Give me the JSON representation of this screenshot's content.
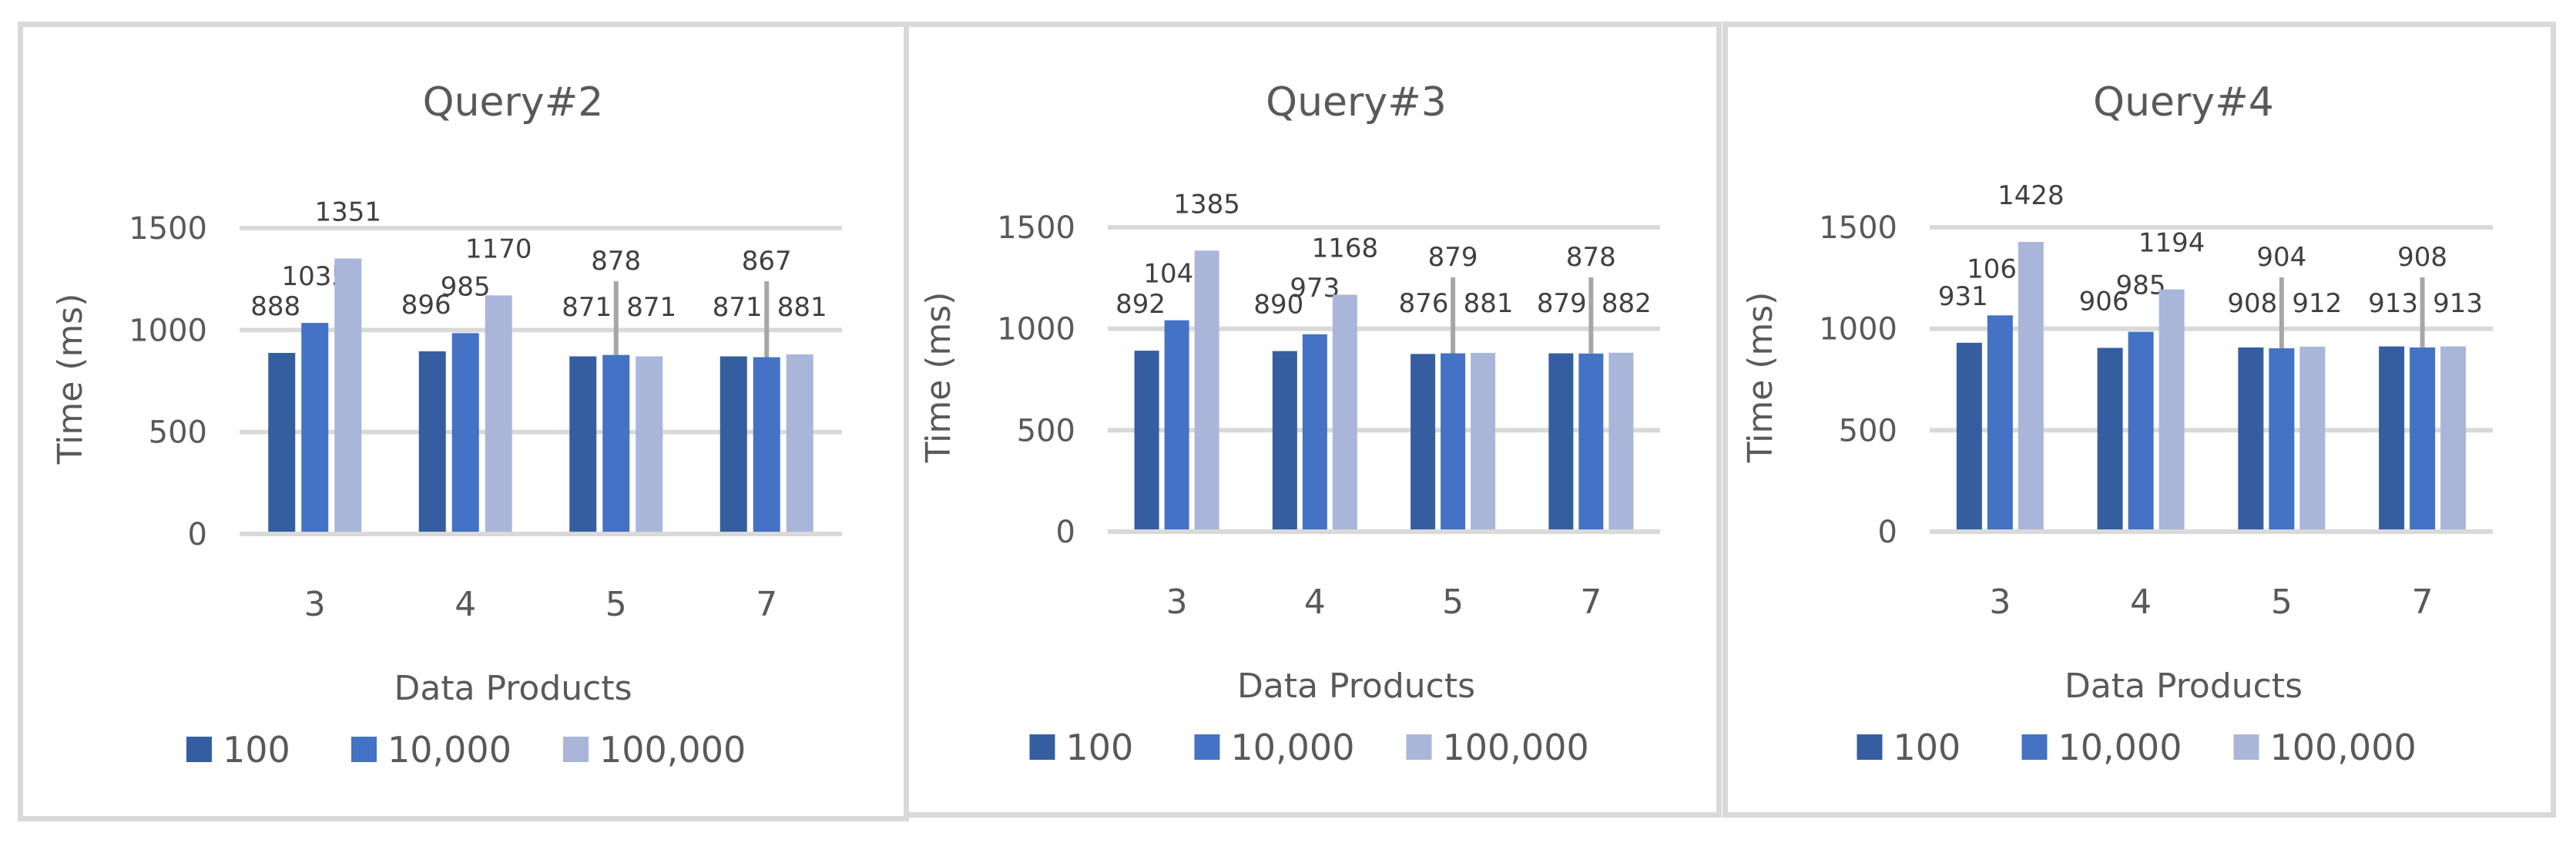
{
  "colors": {
    "series_100": "#355ea0",
    "series_10000": "#4472c4",
    "series_100000": "#a9b6da",
    "grid": "#d9d9d9",
    "leader": "#a6a6a6",
    "axis_text": "#595959",
    "label_text": "#404040",
    "border": "#d9d9d9"
  },
  "legend": [
    "100",
    "10,000",
    "100,000"
  ],
  "chart_data": [
    {
      "type": "bar",
      "title": "Query#2",
      "xlabel": "Data Products",
      "ylabel": "Time (ms)",
      "categories": [
        "3",
        "4",
        "5",
        "7"
      ],
      "yticks": [
        0,
        500,
        1000,
        1500
      ],
      "ylim": [
        0,
        1500
      ],
      "grid": true,
      "legend_position": "bottom",
      "series": [
        {
          "name": "100",
          "values": [
            888,
            896,
            871,
            871
          ]
        },
        {
          "name": "10,000",
          "values": [
            1035,
            985,
            878,
            867
          ]
        },
        {
          "name": "100,000",
          "values": [
            1351,
            1170,
            871,
            881
          ]
        }
      ]
    },
    {
      "type": "bar",
      "title": "Query#3",
      "xlabel": "Data Products",
      "ylabel": "Time (ms)",
      "categories": [
        "3",
        "4",
        "5",
        "7"
      ],
      "yticks": [
        0,
        500,
        1000,
        1500
      ],
      "ylim": [
        0,
        1500
      ],
      "grid": true,
      "legend_position": "bottom",
      "series": [
        {
          "name": "100",
          "values": [
            892,
            890,
            876,
            879
          ]
        },
        {
          "name": "10,000",
          "values": [
            1042,
            973,
            879,
            878
          ]
        },
        {
          "name": "100,000",
          "values": [
            1385,
            1168,
            881,
            882
          ]
        }
      ]
    },
    {
      "type": "bar",
      "title": "Query#4",
      "xlabel": "Data Products",
      "ylabel": "Time (ms)",
      "categories": [
        "3",
        "4",
        "5",
        "7"
      ],
      "yticks": [
        0,
        500,
        1000,
        1500
      ],
      "ylim": [
        0,
        1500
      ],
      "grid": true,
      "legend_position": "bottom",
      "series": [
        {
          "name": "100",
          "values": [
            931,
            906,
            908,
            913
          ]
        },
        {
          "name": "10,000",
          "values": [
            1066,
            985,
            904,
            908
          ]
        },
        {
          "name": "100,000",
          "values": [
            1428,
            1194,
            912,
            913
          ]
        }
      ]
    }
  ]
}
